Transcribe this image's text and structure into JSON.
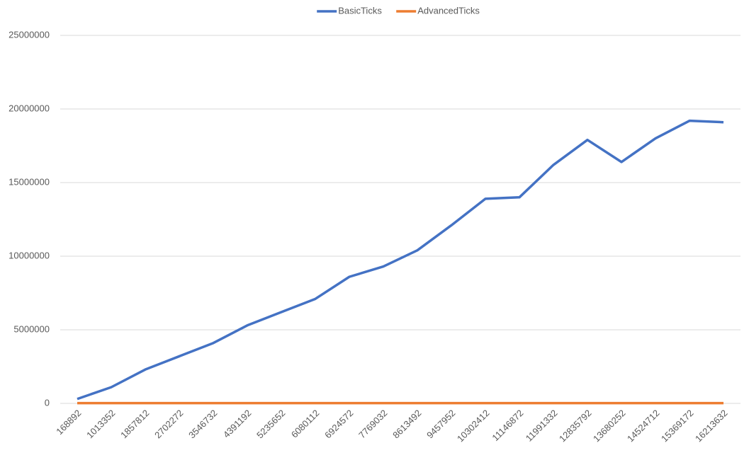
{
  "chart_data": {
    "type": "line",
    "categories": [
      "168892",
      "1013352",
      "1857812",
      "2702272",
      "3546732",
      "4391192",
      "5235652",
      "6080112",
      "6924572",
      "7769032",
      "8613492",
      "9457952",
      "10302412",
      "11146872",
      "11991332",
      "12835792",
      "13680252",
      "14524712",
      "15369172",
      "16213632"
    ],
    "series": [
      {
        "name": "BasicTicks",
        "color": "#4472c4",
        "values": [
          300000,
          1100000,
          2300000,
          3200000,
          4100000,
          5300000,
          6200000,
          7100000,
          8600000,
          9300000,
          10400000,
          12100000,
          13900000,
          14000000,
          16200000,
          17900000,
          16400000,
          18000000,
          19200000,
          19100000
        ]
      },
      {
        "name": "AdvancedTicks",
        "color": "#ed7d31",
        "values": [
          20000,
          20000,
          20000,
          20000,
          20000,
          20000,
          20000,
          20000,
          20000,
          20000,
          20000,
          20000,
          20000,
          20000,
          20000,
          20000,
          20000,
          20000,
          20000,
          20000
        ]
      }
    ],
    "ylim": [
      0,
      25000000
    ],
    "yticks": [
      0,
      5000000,
      10000000,
      15000000,
      20000000,
      25000000
    ],
    "grid": true,
    "legend": "top"
  }
}
